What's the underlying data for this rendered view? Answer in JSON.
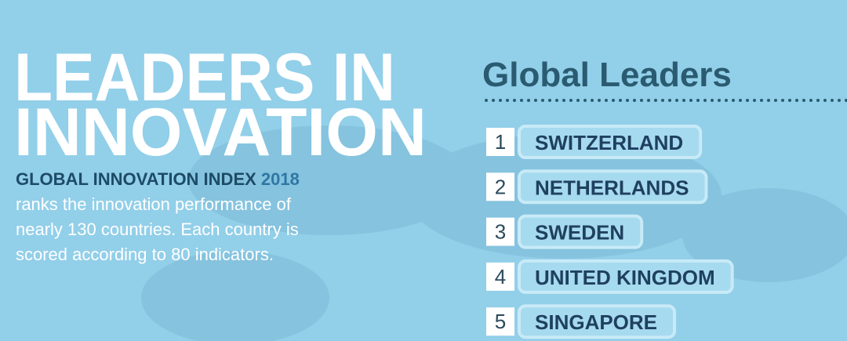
{
  "headline": {
    "lines": [
      "LEADERS IN",
      "INNOVATION"
    ]
  },
  "subtitle": {
    "name": "GLOBAL INNOVATION INDEX",
    "year": "2018"
  },
  "description": {
    "lines": [
      "ranks the innovation performance of",
      "nearly 130 countries. Each country is",
      "scored according to 80 indicators."
    ]
  },
  "leaders": {
    "title": "Global Leaders",
    "items": [
      {
        "rank": 1,
        "country": "SWITZERLAND"
      },
      {
        "rank": 2,
        "country": "NETHERLANDS"
      },
      {
        "rank": 3,
        "country": "SWEDEN"
      },
      {
        "rank": 4,
        "country": "UNITED KINGDOM"
      },
      {
        "rank": 5,
        "country": "SINGAPORE"
      }
    ]
  }
}
